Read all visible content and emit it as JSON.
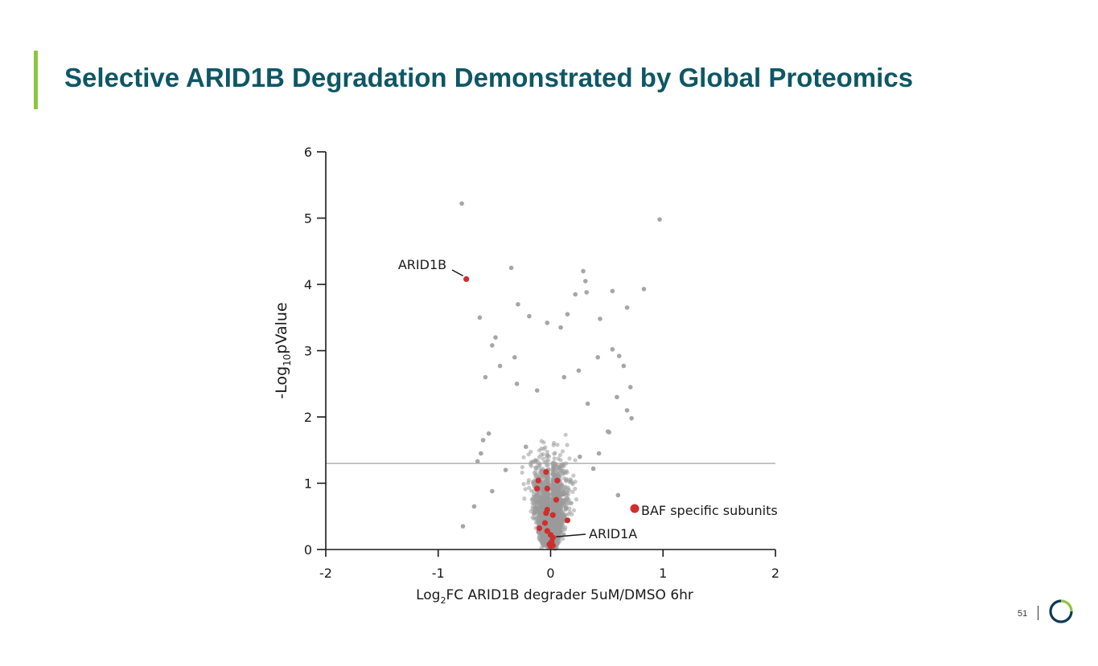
{
  "slide": {
    "title": "Selective ARID1B Degradation Demonstrated by Global Proteomics",
    "page_number": "51",
    "accent_color": "#8dc63f",
    "title_color": "#0e5765"
  },
  "chart_data": {
    "type": "scatter",
    "title": "",
    "xlabel_parts": [
      "Log",
      "2",
      "FC ARID1B degrader 5uM/DMSO 6hr"
    ],
    "ylabel_parts": [
      "-Log",
      "10",
      "pValue"
    ],
    "xlim": [
      -2,
      2
    ],
    "ylim": [
      0,
      6
    ],
    "x_ticks": [
      -2,
      -1,
      0,
      1,
      2
    ],
    "y_ticks": [
      0,
      1,
      2,
      3,
      4,
      5,
      6
    ],
    "threshold_line_y": 1.3,
    "colors": {
      "background_points": "#a6a6a6",
      "highlight": "#d02e2e",
      "threshold": "#a0a0a0",
      "axis": "#1a1a1a"
    },
    "series": [
      {
        "name": "",
        "color": "#a6a6a6",
        "points": [
          [
            -0.79,
            5.22
          ],
          [
            0.97,
            4.98
          ],
          [
            -0.35,
            4.25
          ],
          [
            0.29,
            4.2
          ],
          [
            0.31,
            4.05
          ],
          [
            0.83,
            3.93
          ],
          [
            0.55,
            3.9
          ],
          [
            0.32,
            3.88
          ],
          [
            0.22,
            3.85
          ],
          [
            -0.29,
            3.7
          ],
          [
            0.68,
            3.65
          ],
          [
            0.15,
            3.55
          ],
          [
            -0.63,
            3.5
          ],
          [
            0.44,
            3.48
          ],
          [
            -0.19,
            3.52
          ],
          [
            -0.03,
            3.42
          ],
          [
            0.09,
            3.35
          ],
          [
            -0.49,
            3.2
          ],
          [
            -0.52,
            3.08
          ],
          [
            0.55,
            3.02
          ],
          [
            0.61,
            2.92
          ],
          [
            -0.45,
            2.77
          ],
          [
            0.42,
            2.9
          ],
          [
            -0.32,
            2.9
          ],
          [
            0.65,
            2.77
          ],
          [
            -0.58,
            2.6
          ],
          [
            0.25,
            2.7
          ],
          [
            0.71,
            2.45
          ],
          [
            0.68,
            2.1
          ],
          [
            -0.3,
            2.5
          ],
          [
            0.59,
            2.3
          ],
          [
            0.51,
            1.78
          ],
          [
            0.52,
            1.77
          ],
          [
            0.72,
            1.98
          ],
          [
            -0.55,
            1.75
          ],
          [
            -0.6,
            1.65
          ],
          [
            -0.62,
            1.45
          ],
          [
            -0.65,
            1.33
          ],
          [
            -0.78,
            0.35
          ],
          [
            -0.68,
            0.65
          ],
          [
            -0.52,
            0.88
          ],
          [
            0.6,
            0.82
          ],
          [
            -0.4,
            1.2
          ],
          [
            0.43,
            1.45
          ],
          [
            0.38,
            1.22
          ],
          [
            -0.22,
            1.55
          ],
          [
            0.26,
            1.4
          ],
          [
            0.33,
            2.2
          ],
          [
            -0.12,
            2.4
          ],
          [
            0.12,
            2.6
          ]
        ]
      },
      {
        "name": "BAF specific subunits",
        "color": "#d02e2e",
        "points": [
          [
            -0.04,
            1.17
          ],
          [
            -0.11,
            1.04
          ],
          [
            -0.03,
            0.92
          ],
          [
            -0.12,
            0.92
          ],
          [
            0.06,
            1.04
          ],
          [
            0.05,
            0.75
          ],
          [
            -0.03,
            0.6
          ],
          [
            -0.04,
            0.55
          ],
          [
            0.02,
            0.52
          ],
          [
            0.15,
            0.44
          ],
          [
            -0.05,
            0.4
          ],
          [
            -0.1,
            0.32
          ],
          [
            -0.03,
            0.28
          ],
          [
            0.0,
            0.22
          ],
          [
            0.02,
            0.18
          ],
          [
            0.01,
            0.12
          ],
          [
            -0.01,
            0.08
          ],
          [
            0.0,
            0.05
          ],
          [
            0.02,
            0.06
          ]
        ]
      },
      {
        "name": "ARID1B",
        "color": "#d02e2e",
        "points": [
          [
            -0.75,
            4.08
          ]
        ]
      }
    ],
    "annotations": [
      {
        "text": "ARID1B",
        "x": -0.75,
        "y": 4.08
      },
      {
        "text": "ARID1A",
        "x": 0.02,
        "y": 0.18
      }
    ],
    "legend": {
      "label": "BAF specific subunits",
      "position": "right"
    }
  }
}
